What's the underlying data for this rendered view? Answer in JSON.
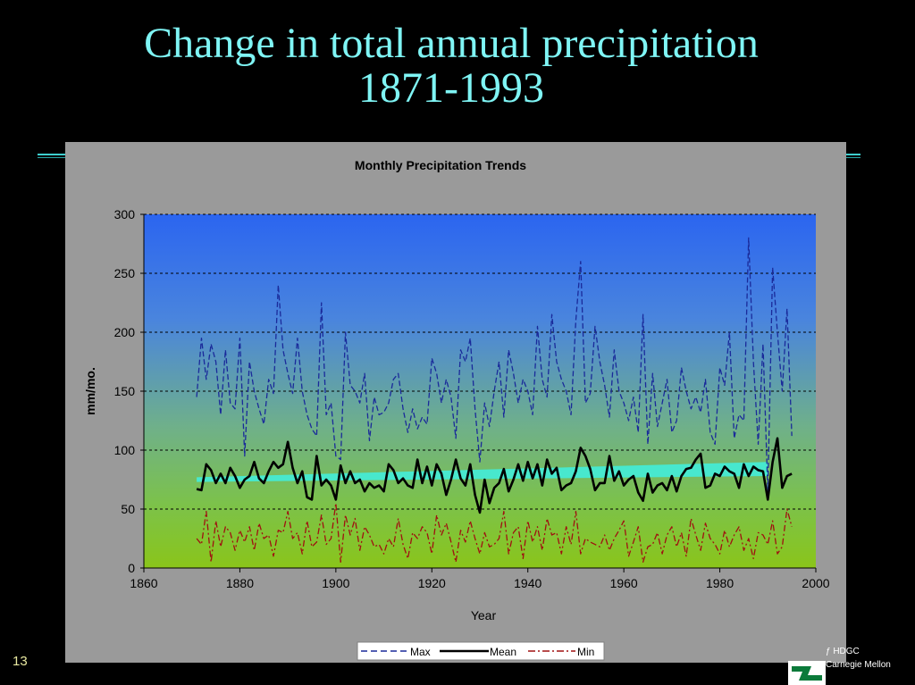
{
  "slide": {
    "title_line1": "Change in total annual precipitation",
    "title_line2": "1871-1993",
    "number": "13",
    "footer_line1": "ƒ HDGC",
    "footer_line2": "Carnegie Mellon"
  },
  "colors": {
    "title": "#7ff5f5",
    "max": "#1a2a9a",
    "mean": "#000000",
    "min": "#a01010",
    "trend": "#40f0e0",
    "plot_top": "#2b65f0",
    "plot_bottom": "#8ac51a",
    "frame": "#9a9a9a"
  },
  "chart_data": {
    "type": "line",
    "title": "Monthly Precipitation Trends",
    "xlabel": "Year",
    "ylabel": "mm/mo.",
    "xlim": [
      1860,
      2000
    ],
    "ylim": [
      0,
      300
    ],
    "xticks": [
      1860,
      1880,
      1900,
      1920,
      1940,
      1960,
      1980,
      2000
    ],
    "yticks": [
      0,
      50,
      100,
      150,
      200,
      250,
      300
    ],
    "grid": "horizontal dashed",
    "legend_position": "bottom",
    "x_start": 1871,
    "series": [
      {
        "name": "Max",
        "style": "dashed",
        "color": "#1a2a9a",
        "values": [
          145,
          195,
          160,
          190,
          175,
          130,
          185,
          140,
          135,
          195,
          95,
          175,
          150,
          135,
          122,
          160,
          148,
          240,
          185,
          165,
          148,
          195,
          150,
          130,
          118,
          112,
          225,
          130,
          140,
          95,
          92,
          200,
          155,
          150,
          140,
          165,
          108,
          145,
          130,
          132,
          140,
          160,
          165,
          135,
          115,
          135,
          118,
          128,
          122,
          178,
          165,
          140,
          160,
          145,
          110,
          185,
          175,
          195,
          135,
          90,
          140,
          120,
          150,
          175,
          128,
          185,
          165,
          140,
          160,
          150,
          130,
          205,
          160,
          145,
          215,
          175,
          160,
          150,
          130,
          210,
          260,
          140,
          148,
          205,
          175,
          155,
          128,
          185,
          150,
          140,
          125,
          145,
          115,
          215,
          105,
          165,
          120,
          140,
          160,
          115,
          125,
          170,
          150,
          135,
          145,
          132,
          160,
          115,
          105,
          170,
          155,
          200,
          110,
          130,
          125,
          280,
          175,
          105,
          190,
          65,
          255,
          200,
          150,
          220,
          112
        ]
      },
      {
        "name": "Mean",
        "style": "solid",
        "color": "#000000",
        "values": [
          67,
          66,
          88,
          83,
          72,
          80,
          72,
          85,
          78,
          68,
          75,
          78,
          90,
          76,
          72,
          82,
          90,
          85,
          88,
          107,
          85,
          72,
          82,
          60,
          58,
          95,
          70,
          75,
          70,
          58,
          87,
          72,
          82,
          72,
          75,
          65,
          72,
          68,
          70,
          65,
          88,
          83,
          72,
          76,
          70,
          68,
          92,
          72,
          86,
          70,
          88,
          80,
          62,
          75,
          92,
          76,
          70,
          88,
          62,
          47,
          75,
          55,
          68,
          72,
          84,
          65,
          75,
          88,
          74,
          90,
          76,
          88,
          70,
          92,
          80,
          85,
          66,
          70,
          72,
          82,
          102,
          95,
          84,
          66,
          72,
          72,
          95,
          74,
          82,
          70,
          75,
          78,
          64,
          57,
          80,
          64,
          70,
          72,
          66,
          78,
          65,
          78,
          84,
          85,
          92,
          97,
          68,
          70,
          80,
          78,
          86,
          82,
          80,
          68,
          88,
          78,
          86,
          83,
          82,
          58,
          90,
          110,
          68,
          78,
          80
        ]
      },
      {
        "name": "Min",
        "style": "dashdot",
        "color": "#a01010",
        "values": [
          25,
          20,
          48,
          5,
          40,
          18,
          35,
          30,
          15,
          32,
          22,
          35,
          15,
          38,
          25,
          28,
          10,
          32,
          30,
          48,
          25,
          30,
          12,
          40,
          18,
          22,
          45,
          20,
          25,
          55,
          5,
          45,
          28,
          42,
          15,
          35,
          28,
          18,
          20,
          12,
          25,
          18,
          42,
          20,
          8,
          30,
          25,
          35,
          30,
          12,
          45,
          28,
          38,
          22,
          5,
          32,
          22,
          40,
          25,
          12,
          30,
          18,
          20,
          25,
          48,
          12,
          30,
          35,
          8,
          40,
          22,
          35,
          15,
          42,
          28,
          30,
          12,
          35,
          20,
          48,
          12,
          25,
          22,
          20,
          18,
          28,
          15,
          25,
          32,
          40,
          10,
          22,
          35,
          5,
          18,
          20,
          30,
          12,
          28,
          35,
          18,
          30,
          10,
          42,
          28,
          15,
          38,
          25,
          20,
          12,
          32,
          18,
          28,
          35,
          15,
          25,
          8,
          30,
          28,
          20,
          40,
          12,
          18,
          50,
          35
        ]
      },
      {
        "name": "Trend",
        "style": "band",
        "color": "#40f0e0",
        "in_legend": false,
        "band_start": [
          1871,
          73,
          77
        ],
        "band_end": [
          1990,
          78,
          90
        ]
      }
    ]
  }
}
